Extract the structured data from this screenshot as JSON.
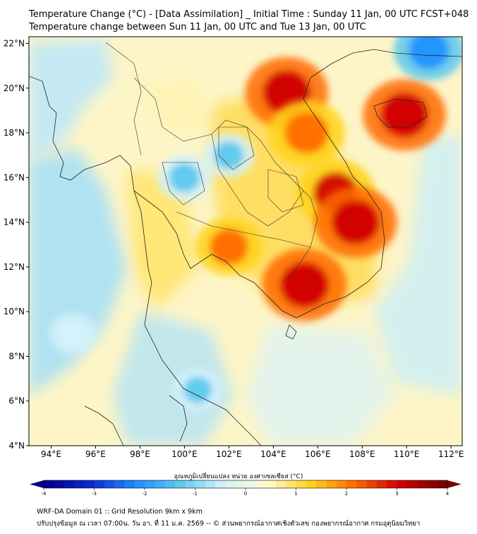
{
  "header": {
    "title_line1": "Temperature Change (°C) - [Data Assimilation] _ Initial Time : Sunday 11 Jan, 00 UTC FCST+048",
    "title_line2": "Temperature change between Sun 11 Jan, 00 UTC and Tue 13 Jan, 00 UTC"
  },
  "map": {
    "lon_labels": [
      "94°E",
      "96°E",
      "98°E",
      "100°E",
      "102°E",
      "104°E",
      "106°E",
      "108°E",
      "110°E",
      "112°E"
    ],
    "lat_labels": [
      "22°N",
      "20°N",
      "18°N",
      "16°N",
      "14°N",
      "12°N",
      "10°N",
      "8°N",
      "6°N",
      "4°N"
    ],
    "lon_range": [
      93,
      112.5
    ],
    "lat_range": [
      4,
      22.3
    ],
    "background_color": "#fdf5c8",
    "regions": [
      {
        "label": "warm",
        "lon": 104.6,
        "lat": 19.8,
        "value": 3.0
      },
      {
        "label": "warm",
        "lon": 105.5,
        "lat": 18.0,
        "value": 2.6
      },
      {
        "label": "warm",
        "lon": 109.9,
        "lat": 18.8,
        "value": 3.0
      },
      {
        "label": "warm",
        "lon": 106.8,
        "lat": 15.3,
        "value": 2.7
      },
      {
        "label": "warm",
        "lon": 107.7,
        "lat": 14.0,
        "value": 3.0
      },
      {
        "label": "warm",
        "lon": 105.4,
        "lat": 11.2,
        "value": 3.1
      },
      {
        "label": "warm",
        "lon": 102.0,
        "lat": 12.9,
        "value": 2.0
      },
      {
        "label": "cool",
        "lon": 100.0,
        "lat": 16.0,
        "value": -1.2
      },
      {
        "label": "cool",
        "lon": 102.0,
        "lat": 17.0,
        "value": -1.0
      },
      {
        "label": "cool",
        "lon": 111.0,
        "lat": 21.7,
        "value": -2.2
      },
      {
        "label": "cool",
        "lon": 95.0,
        "lat": 9.0,
        "value": -0.8
      },
      {
        "label": "cool",
        "lon": 100.6,
        "lat": 6.5,
        "value": -0.9
      }
    ]
  },
  "colorbar": {
    "label": "อุณหภูมิเปลี่ยนแปลง หน่วย องศาเซลเซียส (°C)",
    "ticks": [
      "-4",
      "-3",
      "-2",
      "-1",
      "0",
      "1",
      "2",
      "3",
      "4"
    ],
    "colors": [
      "#00008b",
      "#0a2fd6",
      "#1e90ff",
      "#5cc8ef",
      "#d4f1f9",
      "#fffbd0",
      "#ffd21a",
      "#ff6a00",
      "#d00000",
      "#7a0000"
    ]
  },
  "footer": {
    "line1": "WRF-DA Domain 01 :: Grid Resolution 9km x 9km",
    "line2": "ปรับปรุงข้อมูล ณ เวลา 07:00น. วัน อา. ที่ 11 ม.ค. 2569 -- © ส่วนพยากรณ์อากาศเชิงตัวเลข กองพยากรณ์อากาศ กรมอุตุนิยมวิทยา"
  }
}
